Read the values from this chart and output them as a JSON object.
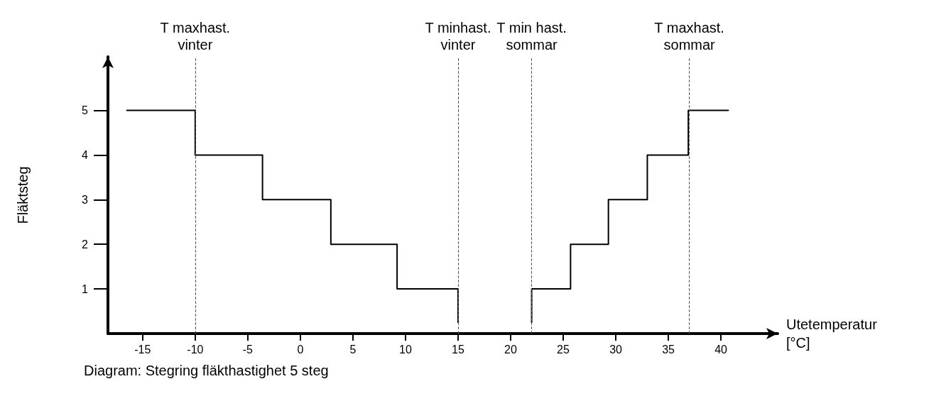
{
  "chart_data": {
    "type": "step",
    "xlabel": "Utetemperatur\n[°C]",
    "ylabel": "Fläktsteg",
    "annotations": [
      "Diagram: Stegring fläkthastighet 5 steg"
    ],
    "series": [
      {
        "color": "#000000",
        "x": [
          -16.5,
          -10,
          -3.6,
          2.9,
          9.2,
          15
        ],
        "values": [
          5,
          4,
          3,
          2,
          1,
          0.25
        ]
      },
      {
        "color": "#000000",
        "x": [
          22,
          22,
          25.7,
          29.3,
          33,
          36.9,
          40.7
        ],
        "values": [
          0.25,
          1,
          2,
          3,
          4,
          5,
          5
        ]
      }
    ],
    "xlim": [
      -18.3,
      45.4
    ],
    "ylim": [
      0,
      6.2
    ],
    "xticks": [
      -15,
      -10,
      -5,
      0,
      5,
      10,
      15,
      20,
      25,
      30,
      35,
      40
    ],
    "yticks": [
      1,
      2,
      3,
      4,
      5
    ],
    "ref_lines": [
      {
        "axis": "x",
        "value": -10,
        "label": "T maxhast.\nvinter",
        "color": "#555555",
        "line_style": "dashed"
      },
      {
        "axis": "x",
        "value": 15,
        "label": "T minhast.\nvinter",
        "color": "#555555",
        "line_style": "dashed"
      },
      {
        "axis": "x",
        "value": 22,
        "label": "T min hast.\nsommar",
        "color": "#555555",
        "line_style": "dashed"
      },
      {
        "axis": "x",
        "value": 37,
        "label": "T maxhast.\nsommar",
        "color": "#555555",
        "line_style": "dashed"
      }
    ],
    "grid": false,
    "marker": "none",
    "line_style": "solid"
  }
}
